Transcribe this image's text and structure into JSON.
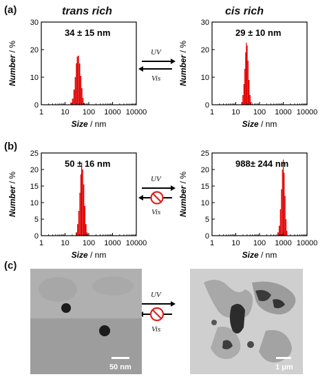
{
  "panels": {
    "a": "(a)",
    "b": "(b)",
    "c": "(c)"
  },
  "columns": {
    "left": "trans rich",
    "right": "cis rich"
  },
  "arrows": {
    "uv": "UV",
    "vis": "Vis"
  },
  "scalebars": {
    "left": "50 nm",
    "right": "1 μm"
  },
  "chart_data": [
    {
      "type": "bar",
      "panel": "a",
      "column": "trans rich",
      "annotation": "34 ± 15 nm",
      "xlabel_italic": "Size",
      "xlabel_unit": " / nm",
      "ylabel_italic": "Number",
      "ylabel_unit": " / %",
      "xscale": "log",
      "xlim": [
        1,
        10000
      ],
      "ylim": [
        0,
        30
      ],
      "xticks": [
        "1",
        "10",
        "100",
        "1000",
        "10000"
      ],
      "yticks": [
        "0",
        "10",
        "20",
        "30"
      ],
      "x": [
        18,
        21,
        24,
        27,
        30,
        33,
        37,
        41,
        46,
        51,
        57,
        63
      ],
      "values": [
        0.8,
        2.2,
        5.5,
        10,
        15,
        17.5,
        17.8,
        15,
        10.5,
        6,
        2.5,
        0.7
      ]
    },
    {
      "type": "bar",
      "panel": "a",
      "column": "cis rich",
      "annotation": "29 ± 10 nm",
      "xlabel_italic": "Size",
      "xlabel_unit": " / nm",
      "ylabel_italic": "Number",
      "ylabel_unit": " / %",
      "xscale": "log",
      "xlim": [
        1,
        10000
      ],
      "ylim": [
        0,
        30
      ],
      "xticks": [
        "1",
        "10",
        "100",
        "1000",
        "10000"
      ],
      "yticks": [
        "0",
        "10",
        "20",
        "30"
      ],
      "x": [
        18,
        20,
        22,
        24,
        26,
        28,
        30,
        33,
        36,
        40,
        44
      ],
      "values": [
        1,
        3.5,
        7.5,
        13,
        19,
        22.5,
        21.5,
        16,
        9,
        3.5,
        1
      ]
    },
    {
      "type": "bar",
      "panel": "b",
      "column": "trans rich",
      "annotation": "50 ± 16 nm",
      "xlabel_italic": "Size",
      "xlabel_unit": " / nm",
      "ylabel_italic": "Number",
      "ylabel_unit": " / %",
      "xscale": "log",
      "xlim": [
        1,
        10000
      ],
      "ylim": [
        0,
        25
      ],
      "xticks": [
        "1",
        "10",
        "100",
        "1000",
        "10000"
      ],
      "yticks": [
        "0",
        "5",
        "10",
        "15",
        "20",
        "25"
      ],
      "x": [
        30,
        34,
        38,
        42,
        46,
        50,
        55,
        61,
        68,
        76,
        85
      ],
      "values": [
        1,
        3.5,
        7.5,
        13,
        18.5,
        22,
        20,
        15.5,
        9,
        3.5,
        1
      ]
    },
    {
      "type": "bar",
      "panel": "b",
      "column": "cis rich",
      "annotation": "988± 244 nm",
      "xlabel_italic": "Size",
      "xlabel_unit": " / nm",
      "ylabel_italic": "Number",
      "ylabel_unit": " / %",
      "xscale": "log",
      "xlim": [
        1,
        10000
      ],
      "ylim": [
        0,
        25
      ],
      "xticks": [
        "1",
        "10",
        "100",
        "1000",
        "10000"
      ],
      "yticks": [
        "0",
        "5",
        "10",
        "15",
        "20",
        "25"
      ],
      "x": [
        600,
        680,
        760,
        840,
        920,
        1000,
        1090,
        1190,
        1300,
        1420
      ],
      "values": [
        1,
        3,
        8,
        14,
        20,
        23,
        19,
        12,
        5,
        1.5
      ]
    }
  ]
}
